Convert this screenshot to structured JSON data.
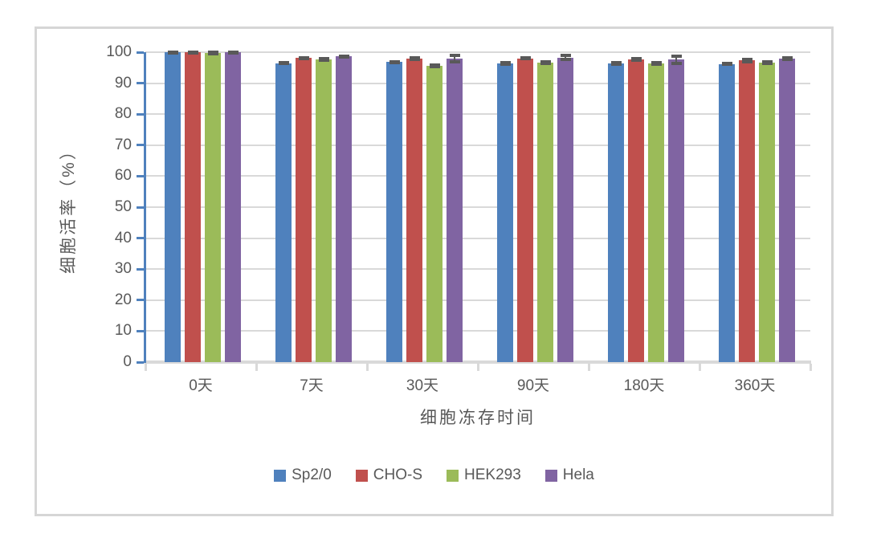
{
  "chart_data": {
    "type": "bar",
    "title": "",
    "xlabel": "细胞冻存时间",
    "ylabel": "细胞活率（%）",
    "ylim": [
      0,
      100
    ],
    "yticks": [
      0,
      10,
      20,
      30,
      40,
      50,
      60,
      70,
      80,
      90,
      100
    ],
    "grid": true,
    "legend_position": "bottom",
    "error_bars": true,
    "categories": [
      "0天",
      "7天",
      "30天",
      "90天",
      "180天",
      "360天"
    ],
    "series": [
      {
        "name": "Sp2/0",
        "color": "#4F81BD",
        "values": [
          99.9,
          96.5,
          96.8,
          96.4,
          96.4,
          96.2
        ],
        "errors": [
          0.2,
          0.2,
          0.2,
          0.2,
          0.2,
          0.2
        ]
      },
      {
        "name": "CHO-S",
        "color": "#C0504D",
        "values": [
          99.9,
          98.1,
          97.9,
          98.0,
          97.6,
          97.3
        ],
        "errors": [
          0.2,
          0.2,
          0.2,
          0.2,
          0.2,
          0.3
        ]
      },
      {
        "name": "HEK293",
        "color": "#9BBB59",
        "values": [
          99.8,
          97.6,
          95.6,
          96.7,
          96.4,
          96.6
        ],
        "errors": [
          0.2,
          0.2,
          0.2,
          0.3,
          0.2,
          0.2
        ]
      },
      {
        "name": "Hela",
        "color": "#8064A2",
        "values": [
          99.9,
          98.6,
          97.9,
          98.3,
          97.6,
          98.0
        ],
        "errors": [
          0.2,
          0.2,
          1.0,
          0.7,
          1.2,
          0.3
        ]
      }
    ],
    "colors": {
      "axis_line": "#4F81BD",
      "gridline": "#D9D9D9",
      "baseline": "#D9D9D9",
      "category_tick": "#D9D9D9",
      "error_bar": "#595959",
      "text": "#595959",
      "frame_border": "#D6D6D6",
      "background": "#FFFFFF"
    }
  }
}
